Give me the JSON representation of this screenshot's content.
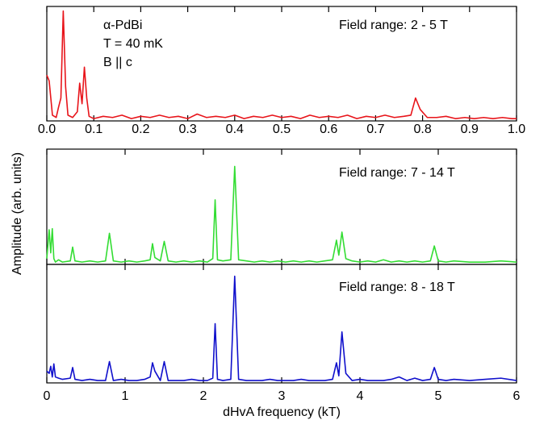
{
  "chart_data": [
    {
      "type": "line",
      "annotations": [
        "α-PdBi",
        "T = 40 mK",
        "B || c",
        "Field range: 2 - 5 T"
      ],
      "x": [
        0,
        0.005,
        0.012,
        0.02,
        0.025,
        0.03,
        0.035,
        0.04,
        0.045,
        0.055,
        0.065,
        0.07,
        0.075,
        0.08,
        0.085,
        0.09,
        0.1,
        0.12,
        0.14,
        0.16,
        0.18,
        0.2,
        0.22,
        0.24,
        0.26,
        0.28,
        0.3,
        0.32,
        0.34,
        0.36,
        0.38,
        0.4,
        0.42,
        0.44,
        0.46,
        0.48,
        0.5,
        0.52,
        0.54,
        0.56,
        0.58,
        0.6,
        0.62,
        0.64,
        0.66,
        0.68,
        0.7,
        0.72,
        0.74,
        0.76,
        0.775,
        0.785,
        0.795,
        0.81,
        0.83,
        0.85,
        0.87,
        0.89,
        0.91,
        0.93,
        0.95,
        0.97,
        0.99,
        1.0
      ],
      "series": [
        {
          "color": "#e8141a",
          "values": [
            0.4,
            0.35,
            0.05,
            0.03,
            0.12,
            0.2,
            0.96,
            0.3,
            0.05,
            0.03,
            0.08,
            0.33,
            0.15,
            0.47,
            0.2,
            0.04,
            0.02,
            0.04,
            0.03,
            0.05,
            0.02,
            0.04,
            0.03,
            0.05,
            0.03,
            0.04,
            0.02,
            0.06,
            0.03,
            0.04,
            0.03,
            0.05,
            0.02,
            0.04,
            0.03,
            0.05,
            0.03,
            0.04,
            0.02,
            0.05,
            0.03,
            0.04,
            0.03,
            0.05,
            0.02,
            0.04,
            0.03,
            0.05,
            0.03,
            0.04,
            0.05,
            0.2,
            0.1,
            0.03,
            0.03,
            0.04,
            0.02,
            0.03,
            0.02,
            0.03,
            0.02,
            0.03,
            0.02,
            0.02
          ]
        }
      ],
      "xlim": [
        0,
        1
      ],
      "xticks": [
        {
          "value": 0,
          "label": "0.0"
        },
        0.1,
        0.2,
        0.3,
        0.4,
        0.5,
        0.6,
        0.7,
        0.8,
        0.9,
        {
          "value": 1,
          "label": "1.0"
        }
      ],
      "ylim": [
        0,
        1
      ]
    },
    {
      "type": "line",
      "annotations": [
        "Field range: 7 - 14 T"
      ],
      "ylabel": "Amplitude (arb. units)",
      "x": [
        0,
        0.03,
        0.05,
        0.07,
        0.09,
        0.11,
        0.15,
        0.2,
        0.3,
        0.33,
        0.36,
        0.45,
        0.55,
        0.65,
        0.75,
        0.8,
        0.85,
        0.95,
        1.05,
        1.15,
        1.25,
        1.32,
        1.35,
        1.38,
        1.45,
        1.5,
        1.55,
        1.65,
        1.75,
        1.85,
        1.95,
        2.05,
        2.12,
        2.15,
        2.18,
        2.25,
        2.35,
        2.4,
        2.45,
        2.55,
        2.65,
        2.75,
        2.85,
        2.95,
        3.05,
        3.15,
        3.25,
        3.35,
        3.45,
        3.55,
        3.65,
        3.7,
        3.73,
        3.77,
        3.82,
        3.9,
        4.0,
        4.1,
        4.2,
        4.3,
        4.4,
        4.5,
        4.6,
        4.7,
        4.8,
        4.9,
        4.95,
        5.0,
        5.1,
        5.2,
        5.4,
        5.6,
        5.8,
        6.0
      ],
      "series": [
        {
          "color": "#33dd33",
          "values": [
            0.05,
            0.3,
            0.1,
            0.31,
            0.05,
            0.02,
            0.04,
            0.02,
            0.03,
            0.15,
            0.03,
            0.02,
            0.03,
            0.02,
            0.03,
            0.27,
            0.03,
            0.02,
            0.03,
            0.02,
            0.03,
            0.04,
            0.18,
            0.06,
            0.03,
            0.2,
            0.03,
            0.02,
            0.03,
            0.02,
            0.03,
            0.02,
            0.05,
            0.56,
            0.04,
            0.03,
            0.04,
            0.85,
            0.04,
            0.03,
            0.02,
            0.03,
            0.02,
            0.03,
            0.02,
            0.03,
            0.02,
            0.03,
            0.02,
            0.03,
            0.04,
            0.21,
            0.08,
            0.28,
            0.05,
            0.03,
            0.02,
            0.03,
            0.02,
            0.04,
            0.02,
            0.03,
            0.02,
            0.03,
            0.02,
            0.03,
            0.16,
            0.03,
            0.02,
            0.03,
            0.02,
            0.02,
            0.03,
            0.02
          ]
        }
      ],
      "xlim": [
        0,
        6
      ],
      "ylim": [
        0,
        1
      ]
    },
    {
      "type": "line",
      "annotations": [
        "Field range: 8 - 18 T"
      ],
      "xlabel": "dHvA frequency (kT)",
      "x": [
        0,
        0.03,
        0.05,
        0.07,
        0.09,
        0.11,
        0.15,
        0.2,
        0.3,
        0.33,
        0.36,
        0.45,
        0.55,
        0.65,
        0.75,
        0.8,
        0.85,
        0.95,
        1.05,
        1.15,
        1.25,
        1.32,
        1.35,
        1.38,
        1.45,
        1.5,
        1.55,
        1.65,
        1.75,
        1.85,
        1.95,
        2.05,
        2.12,
        2.15,
        2.18,
        2.25,
        2.35,
        2.4,
        2.45,
        2.55,
        2.65,
        2.75,
        2.85,
        2.95,
        3.05,
        3.15,
        3.25,
        3.35,
        3.45,
        3.55,
        3.65,
        3.7,
        3.73,
        3.77,
        3.82,
        3.9,
        4.0,
        4.1,
        4.2,
        4.3,
        4.4,
        4.5,
        4.6,
        4.7,
        4.8,
        4.9,
        4.95,
        5.0,
        5.1,
        5.2,
        5.4,
        5.6,
        5.8,
        6.0
      ],
      "series": [
        {
          "color": "#1010cc",
          "values": [
            0.1,
            0.08,
            0.14,
            0.05,
            0.16,
            0.05,
            0.04,
            0.03,
            0.04,
            0.13,
            0.03,
            0.02,
            0.03,
            0.02,
            0.02,
            0.18,
            0.02,
            0.03,
            0.02,
            0.02,
            0.03,
            0.05,
            0.17,
            0.1,
            0.02,
            0.18,
            0.02,
            0.02,
            0.02,
            0.03,
            0.02,
            0.02,
            0.04,
            0.5,
            0.03,
            0.02,
            0.03,
            0.9,
            0.03,
            0.02,
            0.02,
            0.02,
            0.03,
            0.02,
            0.02,
            0.02,
            0.03,
            0.02,
            0.02,
            0.02,
            0.03,
            0.17,
            0.06,
            0.43,
            0.08,
            0.02,
            0.03,
            0.02,
            0.02,
            0.02,
            0.03,
            0.05,
            0.02,
            0.04,
            0.02,
            0.03,
            0.13,
            0.03,
            0.02,
            0.03,
            0.02,
            0.03,
            0.04,
            0.02
          ]
        }
      ],
      "xlim": [
        0,
        6
      ],
      "xticks": [
        0,
        1,
        2,
        3,
        4,
        5,
        6
      ],
      "ylim": [
        0,
        1
      ]
    }
  ]
}
